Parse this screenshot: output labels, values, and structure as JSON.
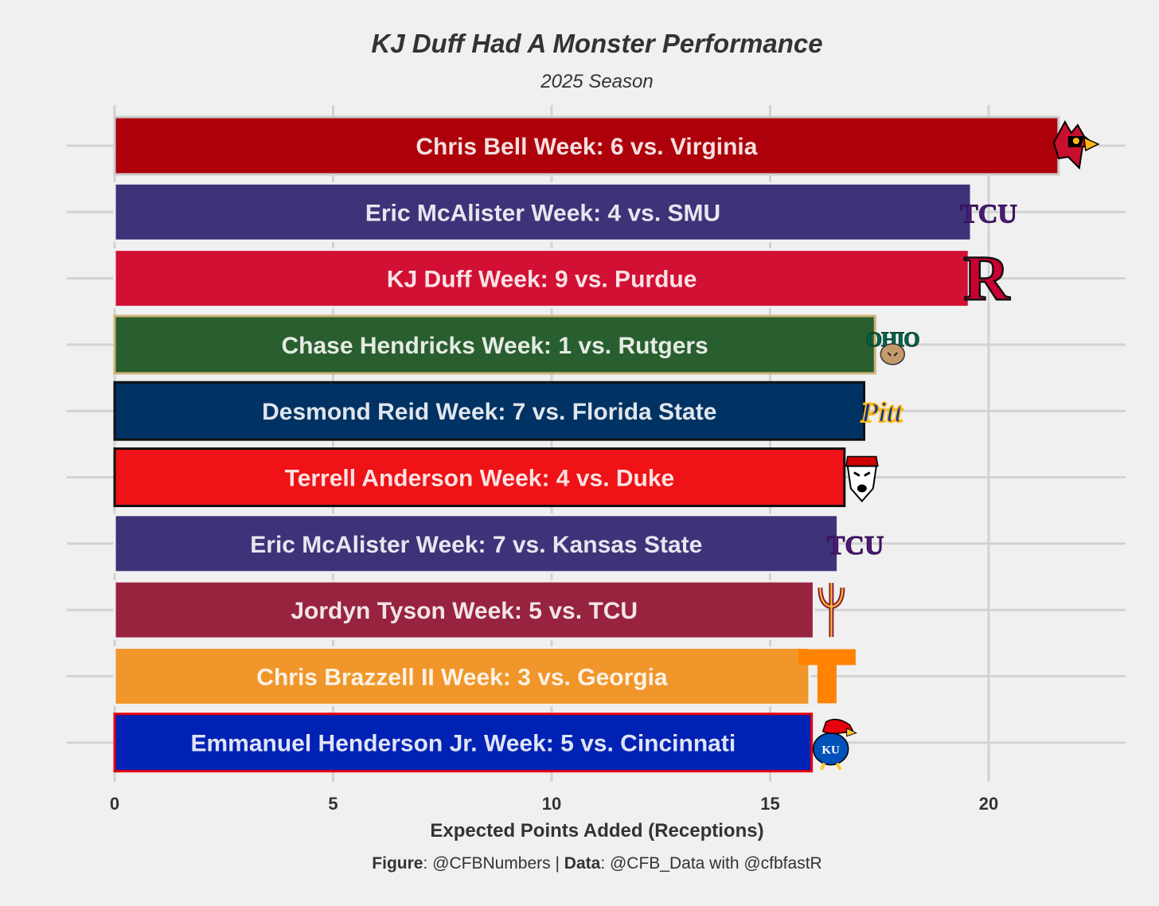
{
  "chart_data": {
    "type": "bar",
    "orientation": "horizontal",
    "title": "KJ Duff Had A Monster Performance",
    "subtitle": "2025 Season",
    "xlabel": "Expected Points Added (Receptions)",
    "ylabel": "",
    "xlim": [
      0,
      23.3
    ],
    "xticks": [
      0,
      5,
      10,
      15,
      20
    ],
    "grid": true,
    "legend": "none",
    "bars": [
      {
        "label": "Chris Bell Week: 6 vs. Virginia",
        "value": 21.6,
        "fill": "#ad000a",
        "outline": "#cccccc",
        "logo": "louisville-cardinal-logo"
      },
      {
        "label": "Eric McAlister Week: 4 vs. SMU",
        "value": 19.6,
        "fill": "#3e3278",
        "outline": "#f0f0f0",
        "logo": "tcu-logo",
        "logo_text": "TCU"
      },
      {
        "label": "KJ Duff Week: 9 vs. Purdue",
        "value": 19.55,
        "fill": "#d21034",
        "outline": "#f0f0f0",
        "logo": "rutgers-r-logo",
        "logo_text": "R"
      },
      {
        "label": "Chase Hendricks Week: 1 vs. Rutgers",
        "value": 17.4,
        "fill": "#295e2e",
        "outline": "#cfb27a",
        "logo": "ohio-bobcat-logo",
        "logo_text": "OHIO"
      },
      {
        "label": "Desmond Reid Week: 7 vs. Florida State",
        "value": 17.15,
        "fill": "#003263",
        "outline": "#111111",
        "logo": "pitt-logo",
        "logo_text": "Pitt"
      },
      {
        "label": "Terrell Anderson Week: 4 vs. Duke",
        "value": 16.7,
        "fill": "#ef1216",
        "outline": "#111111",
        "logo": "nc-state-wolf-logo"
      },
      {
        "label": "Eric McAlister Week: 7 vs. Kansas State",
        "value": 16.55,
        "fill": "#3e3278",
        "outline": "#f0f0f0",
        "logo": "tcu-logo",
        "logo_text": "TCU"
      },
      {
        "label": "Jordyn Tyson Week: 5 vs. TCU",
        "value": 16.0,
        "fill": "#97233f",
        "outline": "#f0f0f0",
        "logo": "arizona-state-pitchfork-logo"
      },
      {
        "label": "Chris Brazzell II Week: 3 vs. Georgia",
        "value": 15.9,
        "fill": "#f0962a",
        "outline": "#f0f0f0",
        "logo": "tennessee-t-logo",
        "logo_text": "T"
      },
      {
        "label": "Emmanuel Henderson Jr. Week: 5 vs. Cincinnati",
        "value": 15.95,
        "fill": "#0022b4",
        "outline": "#e8000d",
        "logo": "kansas-jayhawk-logo",
        "logo_text": "KU"
      }
    ]
  },
  "caption": {
    "figure_label": "Figure",
    "figure_value": ": @CFBNumbers | ",
    "data_label": "Data",
    "data_value": ": @CFB_Data with @cfbfastR"
  }
}
